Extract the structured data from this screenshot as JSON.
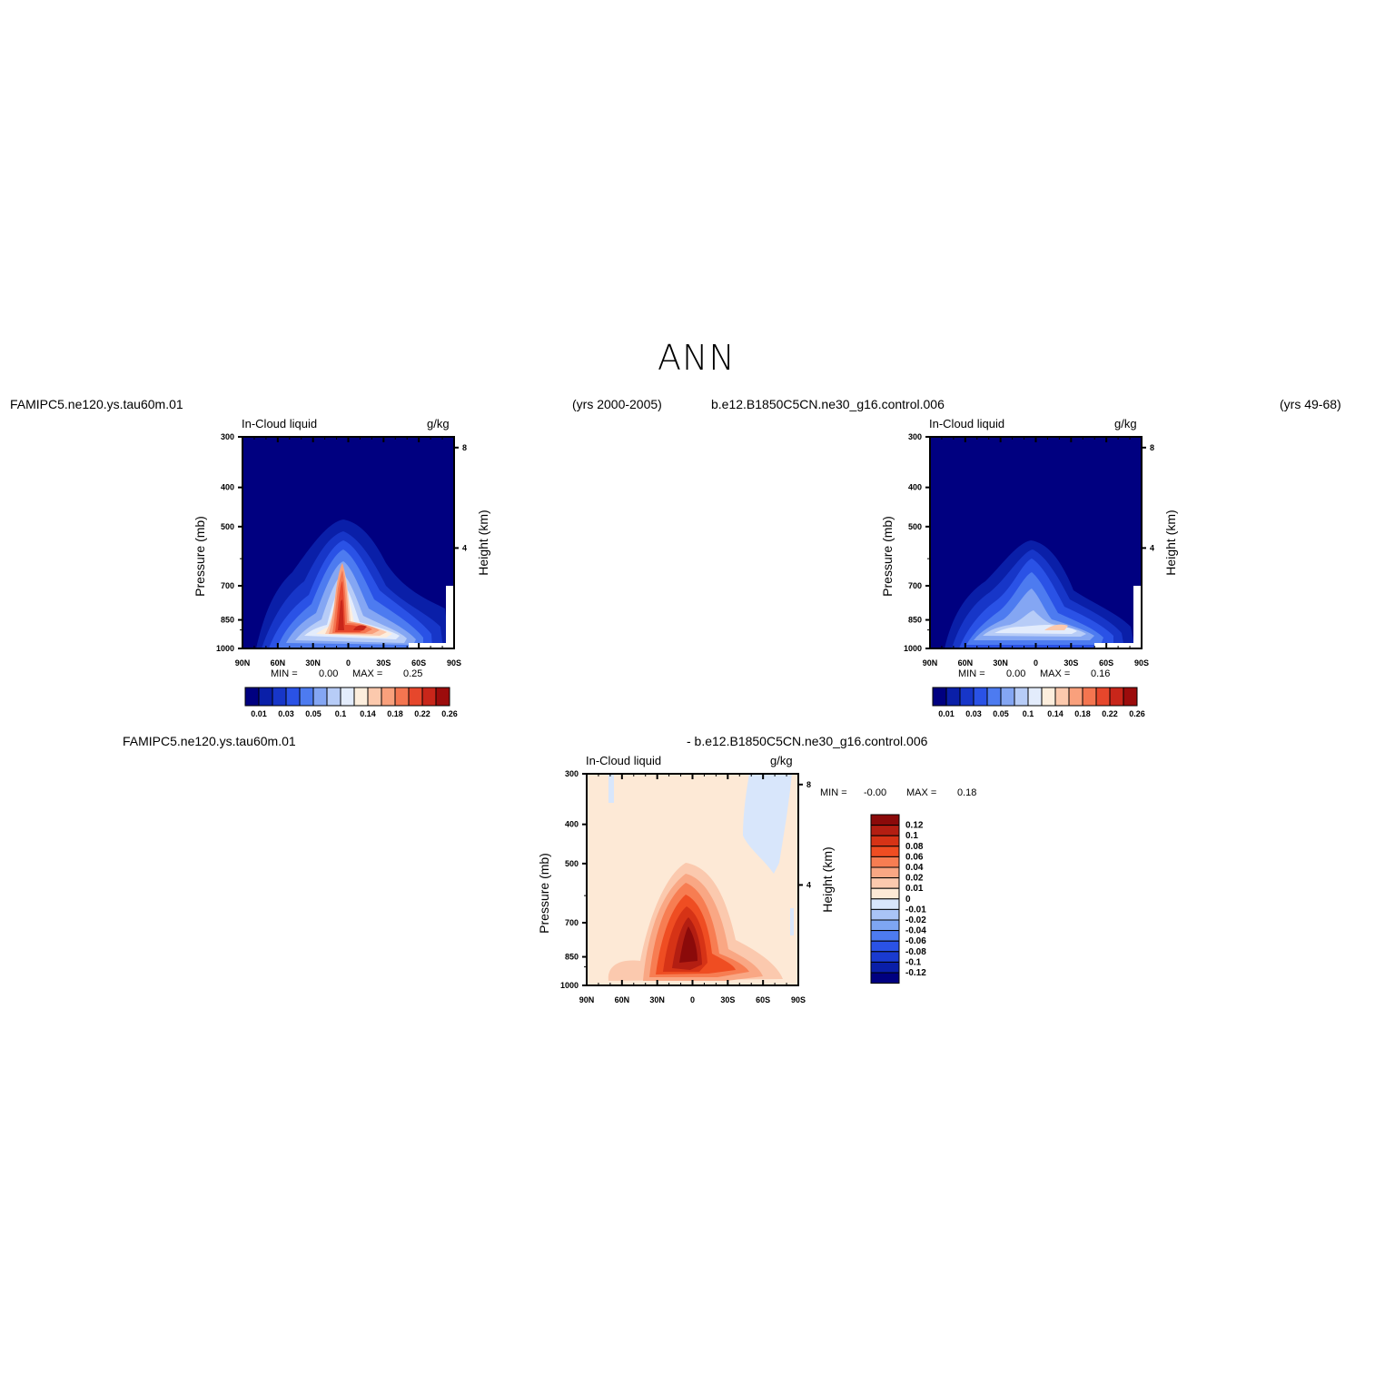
{
  "figure": {
    "title": "ANN"
  },
  "panels": [
    {
      "case_name": "FAMIPC5.ne120.ys.tau60m.01",
      "years": "(yrs 2000-2005)",
      "variable": "In-Cloud liquid",
      "units": "g/kg",
      "stats": {
        "min_label": "MIN =",
        "min_value": "0.00",
        "max_label": "MAX =",
        "max_value": "0.25"
      }
    },
    {
      "case_name": "b.e12.B1850C5CN.ne30_g16.control.006",
      "years": "(yrs 49-68)",
      "variable": "In-Cloud liquid",
      "units": "g/kg",
      "stats": {
        "min_label": "MIN =",
        "min_value": "0.00",
        "max_label": "MAX =",
        "max_value": "0.16"
      }
    },
    {
      "case_name": "FAMIPC5.ne120.ys.tau60m.01",
      "case_name_2": "- b.e12.B1850C5CN.ne30_g16.control.006",
      "variable": "In-Cloud liquid",
      "units": "g/kg",
      "stats": {
        "min_label": "MIN =",
        "min_value": "-0.00",
        "max_label": "MAX =",
        "max_value": "0.18"
      }
    }
  ],
  "axes": {
    "ylabel": "Pressure (mb)",
    "ylabel_right": "Height (km)",
    "pressure_ticks": [
      "300",
      "400",
      "500",
      "700",
      "850",
      "1000"
    ],
    "height_ticks": [
      "8",
      "4"
    ],
    "lat_ticks": [
      "90N",
      "60N",
      "30N",
      "0",
      "30S",
      "60S",
      "90S"
    ]
  },
  "colorbar_abs": {
    "colors": [
      "#000080",
      "#0a1fa8",
      "#1736c8",
      "#2a52e6",
      "#4d7bf0",
      "#84a6f3",
      "#b7ccf7",
      "#e3ecfc",
      "#fdeedd",
      "#fcc9ad",
      "#f9a07c",
      "#f47550",
      "#e6472c",
      "#c8261a",
      "#9c0c0c"
    ],
    "labels": [
      "0.01",
      "0.03",
      "0.05",
      "0.1",
      "0.14",
      "0.18",
      "0.22",
      "0.26"
    ]
  },
  "colorbar_diff": {
    "colors": [
      "#8b0a0a",
      "#b31e12",
      "#d63316",
      "#ef4d22",
      "#f77d52",
      "#f9a784",
      "#fbc9ae",
      "#fde9d6",
      "#d8e6fb",
      "#a9c4f6",
      "#7ea6f3",
      "#4d7bf0",
      "#2a52e6",
      "#1a3bd0",
      "#0a1fa8",
      "#000080"
    ],
    "labels": [
      "0.12",
      "0.1",
      "0.08",
      "0.06",
      "0.04",
      "0.02",
      "0.01",
      "0",
      "-0.01",
      "-0.02",
      "-0.04",
      "-0.06",
      "-0.08",
      "-0.1",
      "-0.12"
    ]
  },
  "chart_data": [
    {
      "type": "heatmap",
      "title": "In-Cloud liquid",
      "subtitle": "FAMIPC5.ne120.ys.tau60m.01 (yrs 2000-2005)",
      "xlabel": "",
      "ylabel": "Pressure (mb)",
      "x_ticks": [
        "90N",
        "60N",
        "30N",
        "0",
        "30S",
        "60S",
        "90S"
      ],
      "y_ticks": [
        300,
        400,
        500,
        700,
        850,
        1000
      ],
      "ylim": [
        1000,
        300
      ],
      "min": 0.0,
      "max": 0.25,
      "units": "g/kg"
    },
    {
      "type": "heatmap",
      "title": "In-Cloud liquid",
      "subtitle": "b.e12.B1850C5CN.ne30_g16.control.006 (yrs 49-68)",
      "xlabel": "",
      "ylabel": "Pressure (mb)",
      "x_ticks": [
        "90N",
        "60N",
        "30N",
        "0",
        "30S",
        "60S",
        "90S"
      ],
      "y_ticks": [
        300,
        400,
        500,
        700,
        850,
        1000
      ],
      "ylim": [
        1000,
        300
      ],
      "min": 0.0,
      "max": 0.16,
      "units": "g/kg"
    },
    {
      "type": "heatmap",
      "title": "In-Cloud liquid",
      "subtitle": "FAMIPC5.ne120.ys.tau60m.01 - b.e12.B1850C5CN.ne30_g16.control.006",
      "xlabel": "",
      "ylabel": "Pressure (mb)",
      "x_ticks": [
        "90N",
        "60N",
        "30N",
        "0",
        "30S",
        "60S",
        "90S"
      ],
      "y_ticks": [
        300,
        400,
        500,
        700,
        850,
        1000
      ],
      "ylim": [
        1000,
        300
      ],
      "min": -0.0,
      "max": 0.18,
      "units": "g/kg"
    }
  ]
}
